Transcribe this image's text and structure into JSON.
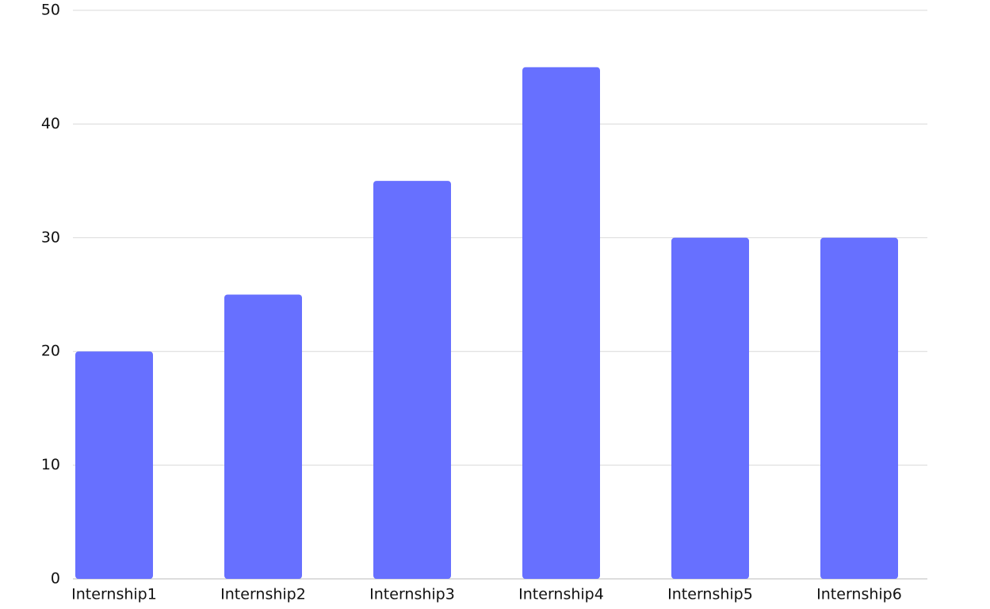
{
  "chart_data": {
    "type": "bar",
    "categories": [
      "Internship1",
      "Internship2",
      "Internship3",
      "Internship4",
      "Internship5",
      "Internship6"
    ],
    "values": [
      20,
      25,
      35,
      45,
      30,
      30
    ],
    "color": "#6770ff",
    "ylim": [
      0,
      50
    ],
    "yticks": [
      0,
      10,
      20,
      30,
      40,
      50
    ],
    "grid": true
  }
}
